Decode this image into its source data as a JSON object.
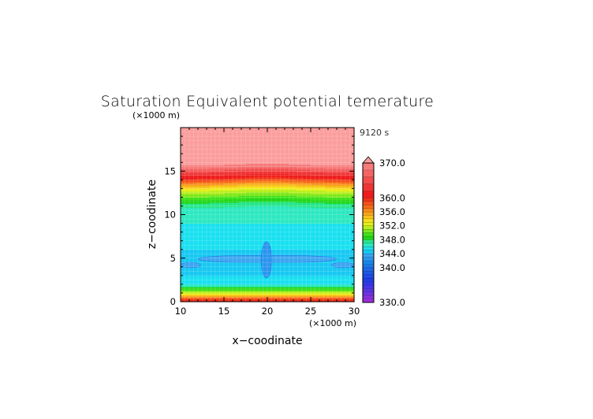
{
  "chart_data": {
    "type": "heatmap",
    "title": "Saturation Equivalent potential temerature",
    "xlabel": "x−coodinate",
    "ylabel": "z−coodinate",
    "x_units": "(×1000 m)",
    "y_units": "(×1000 m)",
    "time_label": "9120 s",
    "xlim": [
      10,
      30
    ],
    "ylim": [
      0,
      20
    ],
    "x_ticks": [
      10,
      15,
      20,
      25,
      30
    ],
    "y_ticks": [
      0,
      5,
      10,
      15
    ],
    "grid": true,
    "colorbar": {
      "placement": "right",
      "min": 330,
      "max": 370,
      "extend": "max",
      "tick_labels": [
        "370.0",
        "360.0",
        "356.0",
        "352.0",
        "348.0",
        "344.0",
        "340.0",
        "330.0"
      ],
      "tick_values": [
        370,
        360,
        356,
        352,
        348,
        344,
        340,
        330
      ],
      "levels": [
        {
          "from": 330,
          "to": 331,
          "color": "#9b2ee0"
        },
        {
          "from": 331,
          "to": 332,
          "color": "#8a2ee0"
        },
        {
          "from": 332,
          "to": 333,
          "color": "#6e31e2"
        },
        {
          "from": 333,
          "to": 334,
          "color": "#5a34e4"
        },
        {
          "from": 334,
          "to": 335,
          "color": "#4536e6"
        },
        {
          "from": 335,
          "to": 336,
          "color": "#2e3ae8"
        },
        {
          "from": 336,
          "to": 337,
          "color": "#223fe8"
        },
        {
          "from": 337,
          "to": 338,
          "color": "#1f4ae8"
        },
        {
          "from": 338,
          "to": 339,
          "color": "#1d58e8"
        },
        {
          "from": 339,
          "to": 340,
          "color": "#1c67e8"
        },
        {
          "from": 340,
          "to": 341,
          "color": "#1b77ea"
        },
        {
          "from": 341,
          "to": 342,
          "color": "#1c86ec"
        },
        {
          "from": 342,
          "to": 343,
          "color": "#2a95ee"
        },
        {
          "from": 343,
          "to": 344,
          "color": "#3da6f0"
        },
        {
          "from": 344,
          "to": 345,
          "color": "#17c8f2"
        },
        {
          "from": 345,
          "to": 346,
          "color": "#19e0f0"
        },
        {
          "from": 346,
          "to": 347,
          "color": "#2ce8c0"
        },
        {
          "from": 347,
          "to": 348,
          "color": "#27e68c"
        },
        {
          "from": 348,
          "to": 349,
          "color": "#1ed616"
        },
        {
          "from": 349,
          "to": 350,
          "color": "#3ee01a"
        },
        {
          "from": 350,
          "to": 351,
          "color": "#7ee81c"
        },
        {
          "from": 351,
          "to": 352,
          "color": "#b6ee1c"
        },
        {
          "from": 352,
          "to": 353,
          "color": "#e6f01a"
        },
        {
          "from": 353,
          "to": 354,
          "color": "#f6de1a"
        },
        {
          "from": 354,
          "to": 355,
          "color": "#f8c21a"
        },
        {
          "from": 355,
          "to": 356,
          "color": "#f8a41a"
        },
        {
          "from": 356,
          "to": 357,
          "color": "#f8861a"
        },
        {
          "from": 357,
          "to": 358,
          "color": "#f66a1a"
        },
        {
          "from": 358,
          "to": 359,
          "color": "#f44e1a"
        },
        {
          "from": 359,
          "to": 360,
          "color": "#f2321a"
        },
        {
          "from": 360,
          "to": 362,
          "color": "#ee1c1c"
        },
        {
          "from": 362,
          "to": 364,
          "color": "#f03434"
        },
        {
          "from": 364,
          "to": 366,
          "color": "#f24c4c"
        },
        {
          "from": 366,
          "to": 368,
          "color": "#f46464"
        },
        {
          "from": 368,
          "to": 370,
          "color": "#f67a7a"
        },
        {
          "from": 370,
          "to": 380,
          "color": "#fb9d9d"
        }
      ]
    },
    "profile": {
      "description_z_km": [
        0,
        0.5,
        1.0,
        1.5,
        2.0,
        2.5,
        3.0,
        3.5,
        4.0,
        5.0,
        7.0,
        9.0,
        10.5,
        11.3,
        12.0,
        12.7,
        13.3,
        13.8,
        14.3,
        14.8,
        15.3,
        16.0,
        20.0
      ],
      "theta_es_K": [
        361,
        357,
        352,
        349,
        346,
        345.5,
        345,
        344.5,
        345,
        344.5,
        345.5,
        346,
        346.5,
        348,
        350,
        352,
        355,
        358,
        361,
        364,
        368,
        372,
        373
      ]
    },
    "features": [
      {
        "label": "low-value band",
        "x_range": [
          12,
          28
        ],
        "z_range": [
          4.5,
          5.3
        ],
        "value": 343
      },
      {
        "label": "low-value core",
        "x_range": [
          19.3,
          20.5
        ],
        "z_range": [
          2.7,
          6.9
        ],
        "value": 342.5
      },
      {
        "label": "left edge patch",
        "x_range": [
          10,
          12.3
        ],
        "z_range": [
          3.9,
          4.5
        ],
        "value": 343
      },
      {
        "label": "right edge patch",
        "x_range": [
          27.4,
          30
        ],
        "z_range": [
          3.9,
          4.5
        ],
        "value": 343
      }
    ]
  }
}
